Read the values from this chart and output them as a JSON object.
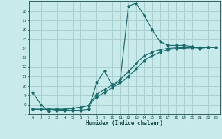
{
  "title": "",
  "xlabel": "Humidex (Indice chaleur)",
  "bg_color": "#c8eaea",
  "line_color": "#1a6b6b",
  "grid_color": "#a8d0d0",
  "xlim": [
    -0.5,
    23.5
  ],
  "ylim": [
    7,
    19
  ],
  "xticks": [
    0,
    1,
    2,
    3,
    4,
    5,
    6,
    7,
    8,
    9,
    10,
    11,
    12,
    13,
    14,
    15,
    16,
    17,
    18,
    19,
    20,
    21,
    22,
    23
  ],
  "yticks": [
    7,
    8,
    9,
    10,
    11,
    12,
    13,
    14,
    15,
    16,
    17,
    18
  ],
  "line1_x": [
    0,
    1,
    2,
    3,
    4,
    5,
    6,
    7,
    8,
    9,
    10,
    11,
    12,
    13,
    14,
    15,
    16,
    17,
    18,
    19,
    20,
    21,
    22,
    23
  ],
  "line1_y": [
    9.3,
    8.0,
    7.3,
    7.4,
    7.4,
    7.4,
    7.4,
    7.5,
    10.3,
    11.6,
    10.0,
    10.5,
    18.5,
    18.8,
    17.5,
    16.0,
    14.7,
    14.3,
    14.3,
    14.3,
    14.2,
    14.0,
    14.1,
    14.1
  ],
  "line2_x": [
    0,
    1,
    2,
    3,
    4,
    5,
    6,
    7,
    8,
    9,
    10,
    11,
    12,
    13,
    14,
    15,
    16,
    17,
    18,
    19,
    20,
    21,
    22,
    23
  ],
  "line2_y": [
    7.5,
    7.5,
    7.5,
    7.5,
    7.5,
    7.6,
    7.7,
    7.9,
    8.8,
    9.3,
    9.8,
    10.3,
    11.0,
    11.8,
    12.7,
    13.2,
    13.6,
    13.85,
    13.97,
    14.02,
    14.05,
    14.07,
    14.1,
    14.1
  ],
  "line3_x": [
    0,
    1,
    2,
    3,
    4,
    5,
    6,
    7,
    8,
    9,
    10,
    11,
    12,
    13,
    14,
    15,
    16,
    17,
    18,
    19,
    20,
    21,
    22,
    23
  ],
  "line3_y": [
    7.5,
    7.5,
    7.5,
    7.5,
    7.5,
    7.6,
    7.7,
    7.9,
    9.1,
    9.6,
    10.1,
    10.7,
    11.5,
    12.4,
    13.2,
    13.6,
    13.85,
    14.0,
    14.05,
    14.08,
    14.1,
    14.1,
    14.12,
    14.12
  ]
}
